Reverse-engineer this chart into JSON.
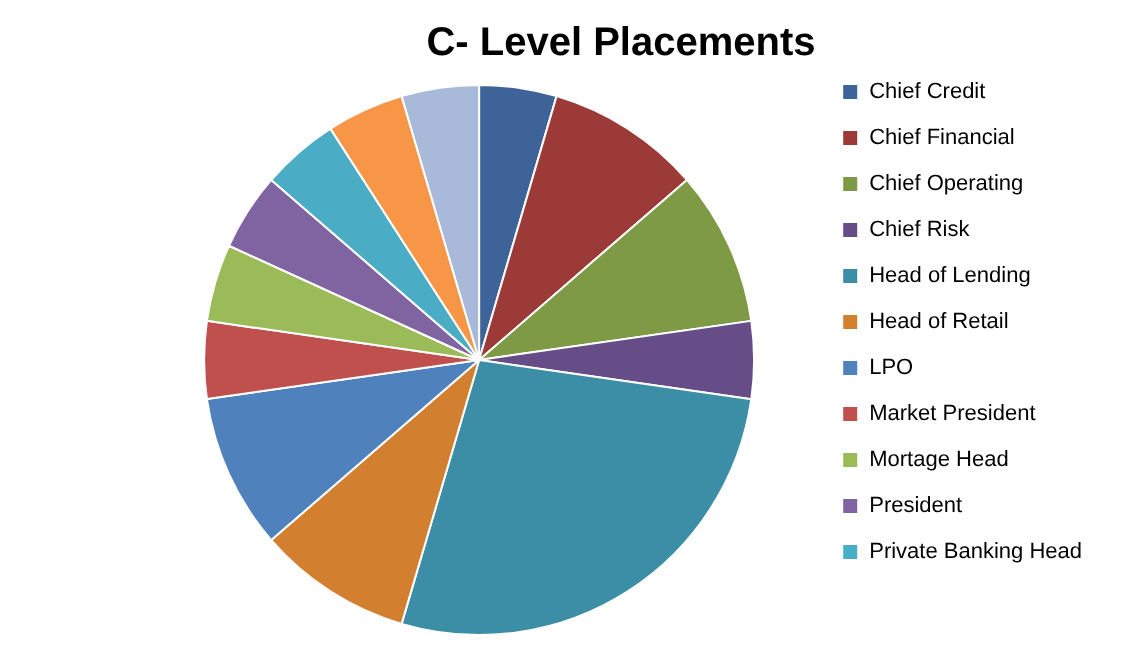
{
  "chart_data": {
    "type": "pie",
    "title": "C- Level Placements",
    "categories": [
      "Chief Credit",
      "Chief Financial",
      "Chief Operating",
      "Chief Risk",
      "Head of Lending",
      "Head of Retail",
      "LPO",
      "Market President",
      "Mortage Head",
      "President",
      "Private Banking Head",
      null,
      null
    ],
    "values": [
      4.545,
      9.091,
      9.091,
      4.545,
      27.273,
      9.091,
      9.091,
      4.545,
      4.545,
      4.545,
      4.545,
      4.545,
      4.545
    ],
    "colors": [
      "#3d6399",
      "#9c3a38",
      "#7e9a44",
      "#664d87",
      "#3b8ea5",
      "#d27f30",
      "#4f81bd",
      "#c0504d",
      "#9bbb59",
      "#8064a2",
      "#4bacc6",
      "#f79646",
      "#a9b9da"
    ],
    "legend": "right"
  }
}
